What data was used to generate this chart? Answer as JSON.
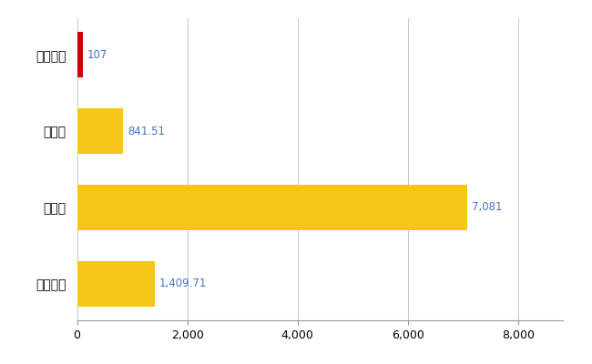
{
  "categories": [
    "大宜味村",
    "県平均",
    "県最大",
    "全国平均"
  ],
  "values": [
    107,
    841.51,
    7081,
    1409.71
  ],
  "bar_colors": [
    "#cc0000",
    "#f5c518",
    "#f5c518",
    "#f5c518"
  ],
  "labels": [
    "107",
    "841.51",
    "7,081",
    "1,409.71"
  ],
  "xlim": [
    0,
    8800
  ],
  "xticks": [
    0,
    2000,
    4000,
    6000,
    8000
  ],
  "background_color": "#ffffff",
  "grid_color": "#c8c8c8",
  "label_color": "#4472c4",
  "bar_height": 0.6,
  "figsize": [
    6.5,
    4.0
  ],
  "dpi": 100
}
